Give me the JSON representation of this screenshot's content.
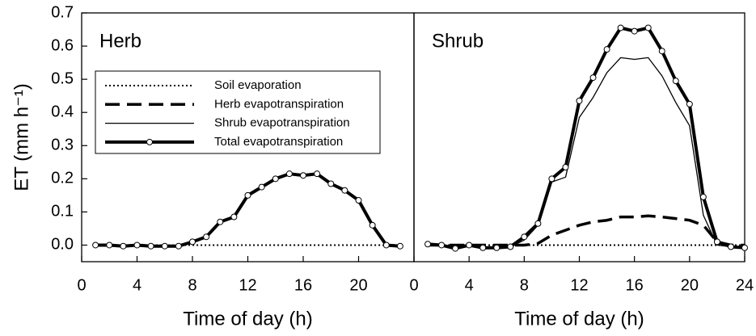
{
  "chart_data": [
    {
      "type": "line",
      "title": "Herb",
      "ylabel": "ET (mm h⁻¹)",
      "xlabel": "Time of day (h)",
      "xlim": [
        0,
        24
      ],
      "xticks": [
        0,
        4,
        8,
        12,
        16,
        20
      ],
      "ylim": [
        -0.05,
        0.7
      ],
      "yticks": [
        {
          "value": 0,
          "label": "0.0"
        },
        0.1,
        0.2,
        0.3,
        0.4,
        0.5,
        0.6,
        0.7
      ],
      "x": [
        1,
        2,
        3,
        4,
        5,
        6,
        7,
        8,
        9,
        10,
        11,
        12,
        13,
        14,
        15,
        16,
        17,
        18,
        19,
        20,
        21,
        22,
        23
      ],
      "series": [
        {
          "name": "Soil evaporation",
          "color": "#000000",
          "style": "dotted",
          "values": [
            0,
            0,
            0,
            0,
            0,
            0,
            0,
            0,
            0,
            0,
            0,
            0,
            0,
            0,
            0,
            0,
            0,
            0,
            0,
            0,
            0,
            0,
            0
          ]
        },
        {
          "name": "Herb evapotranspiration",
          "color": "#000000",
          "style": "dashed",
          "values": [
            0,
            0,
            -0.003,
            0,
            -0.003,
            -0.003,
            -0.003,
            0.01,
            0.025,
            0.07,
            0.085,
            0.15,
            0.175,
            0.2,
            0.215,
            0.21,
            0.215,
            0.185,
            0.165,
            0.135,
            0.06,
            0,
            -0.003
          ]
        },
        {
          "name": "Shrub evapotranspiration",
          "color": "#000000",
          "style": "thin",
          "values": [
            null,
            null,
            null,
            null,
            null,
            null,
            null,
            null,
            null,
            null,
            null,
            null,
            null,
            null,
            null,
            null,
            null,
            null,
            null,
            null,
            null,
            null,
            null
          ]
        },
        {
          "name": "Total evapotranspiration",
          "color": "#000000",
          "style": "marker",
          "values": [
            0,
            0,
            -0.003,
            0,
            -0.003,
            -0.003,
            -0.003,
            0.01,
            0.025,
            0.07,
            0.085,
            0.15,
            0.175,
            0.2,
            0.215,
            0.21,
            0.215,
            0.185,
            0.165,
            0.135,
            0.06,
            0,
            -0.003
          ]
        }
      ],
      "legend": "upper left"
    },
    {
      "type": "line",
      "title": "Shrub",
      "xlabel": "Time of day (h)",
      "xlim": [
        0,
        24
      ],
      "xticks": [
        0,
        4,
        8,
        12,
        16,
        20,
        24
      ],
      "ylim": [
        -0.05,
        0.7
      ],
      "x": [
        1,
        2,
        3,
        4,
        5,
        6,
        7,
        8,
        9,
        10,
        11,
        12,
        13,
        14,
        15,
        16,
        17,
        18,
        19,
        20,
        21,
        22,
        23,
        24
      ],
      "series": [
        {
          "name": "Soil evaporation",
          "color": "#000000",
          "style": "dotted",
          "values": [
            0,
            0,
            0,
            0,
            0,
            0,
            0,
            0,
            0,
            0,
            0,
            0,
            0,
            0,
            0,
            0,
            0,
            0,
            0,
            0,
            0,
            0,
            0,
            0
          ]
        },
        {
          "name": "Herb evapotranspiration",
          "color": "#000000",
          "style": "dashed",
          "values": [
            0,
            0,
            0,
            0,
            0,
            0,
            0,
            0,
            0.005,
            0.03,
            0.045,
            0.06,
            0.07,
            0.075,
            0.085,
            0.085,
            0.088,
            0.085,
            0.08,
            0.075,
            0.06,
            0.01,
            0,
            0
          ]
        },
        {
          "name": "Shrub evapotranspiration",
          "color": "#000000",
          "style": "thin",
          "values": [
            0,
            0,
            -0.008,
            0,
            -0.005,
            -0.01,
            -0.005,
            0.015,
            0.06,
            0.19,
            0.205,
            0.385,
            0.445,
            0.52,
            0.565,
            0.56,
            0.565,
            0.51,
            0.43,
            0.36,
            0.09,
            0,
            -0.005,
            -0.008
          ]
        },
        {
          "name": "Total evapotranspiration",
          "color": "#000000",
          "style": "marker",
          "values": [
            0.003,
            0,
            -0.01,
            0,
            -0.008,
            -0.008,
            -0.005,
            0.025,
            0.065,
            0.2,
            0.235,
            0.435,
            0.505,
            0.59,
            0.655,
            0.645,
            0.655,
            0.585,
            0.495,
            0.425,
            0.145,
            0.01,
            -0.005,
            -0.008
          ]
        }
      ]
    }
  ]
}
